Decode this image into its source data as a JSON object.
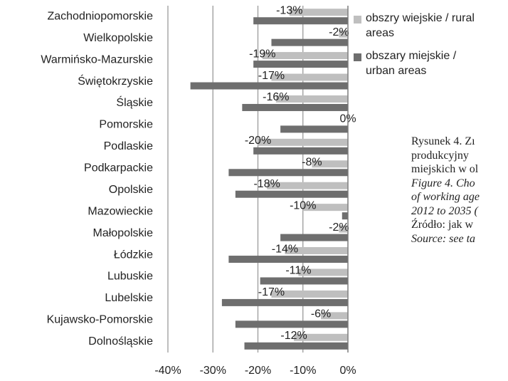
{
  "chart_data": {
    "type": "hbar",
    "categories": [
      "Zachodniopomorskie",
      "Wielkopolskie",
      "Warmińsko-Mazurskie",
      "Świętokrzyskie",
      "Śląskie",
      "Pomorskie",
      "Podlaskie",
      "Podkarpackie",
      "Opolskie",
      "Mazowieckie",
      "Małopolskie",
      "Łódzkie",
      "Lubuskie",
      "Lubelskie",
      "Kujawsko-Pomorskie",
      "Dolnośląskie"
    ],
    "series": [
      {
        "name": "obszry wiejskie / rural areas",
        "color": "#bfbfbf",
        "values": [
          -13,
          -2,
          -19,
          -17,
          -16,
          0,
          -20,
          -8,
          -18,
          -10,
          -2,
          -14,
          -11,
          -17,
          -6,
          -12
        ],
        "value_labels": [
          "-13%",
          "-2%",
          "-19%",
          "-17%",
          "-16%",
          "0%",
          "-20%",
          "-8%",
          "-18%",
          "-10%",
          "-2%",
          "-14%",
          "-11%",
          "-17%",
          "-6%",
          "-12%"
        ]
      },
      {
        "name": "obszary miejskie / urban areas",
        "color": "#6e6e6e",
        "values": [
          -21,
          -17,
          -21,
          -35,
          -23.5,
          -15,
          -21,
          -26.5,
          -25,
          -1.3,
          -15,
          -26.5,
          -19.5,
          -28,
          -25,
          -23
        ]
      }
    ],
    "xlim": [
      -40,
      0
    ],
    "xticks": [
      {
        "value": -40,
        "label": "-40%"
      },
      {
        "value": -30,
        "label": "-30%"
      },
      {
        "value": -20,
        "label": "-20%"
      },
      {
        "value": -10,
        "label": "-10%"
      },
      {
        "value": 0,
        "label": "0%"
      }
    ],
    "grid": true,
    "caption": [
      "Rysunek 4. Zı",
      "produkcyjny",
      "miejskich w ol",
      "Figure 4. Cho",
      "of working age",
      "2012 to 2035 (",
      "Źródło: jak w",
      "Source: see ta"
    ],
    "caption_italic": [
      false,
      false,
      false,
      true,
      true,
      true,
      false,
      true
    ]
  }
}
